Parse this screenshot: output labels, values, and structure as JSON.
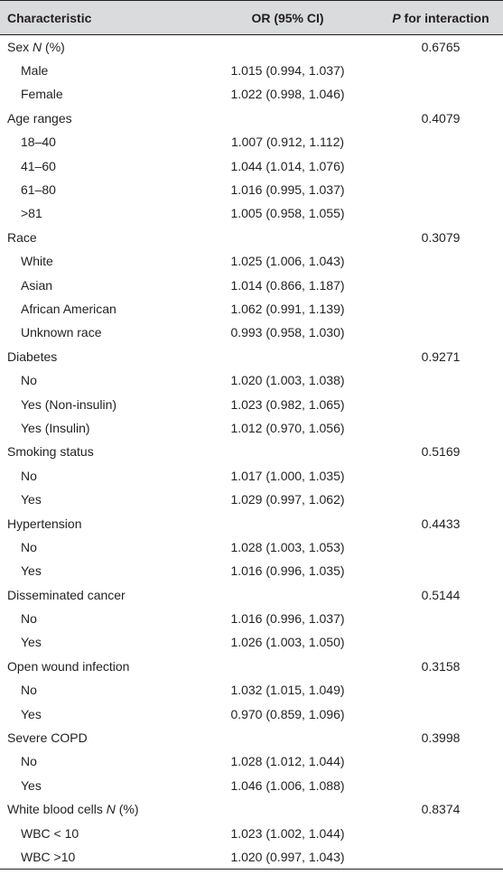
{
  "header": {
    "col1": "Characteristic",
    "col2": "OR (95% CI)",
    "col3_italic": "P",
    "col3_rest": " for interaction"
  },
  "rows": [
    {
      "label_pre": "Sex ",
      "label_italic": "N",
      "label_post": " (%)",
      "or": "",
      "p": "0.6765",
      "sub": false
    },
    {
      "label": "Male",
      "or": "1.015 (0.994, 1.037)",
      "p": "",
      "sub": true
    },
    {
      "label": "Female",
      "or": "1.022 (0.998, 1.046)",
      "p": "",
      "sub": true
    },
    {
      "label": "Age ranges",
      "or": "",
      "p": "0.4079",
      "sub": false
    },
    {
      "label": "18–40",
      "or": "1.007 (0.912, 1.112)",
      "p": "",
      "sub": true
    },
    {
      "label": "41–60",
      "or": "1.044 (1.014, 1.076)",
      "p": "",
      "sub": true
    },
    {
      "label": "61–80",
      "or": "1.016 (0.995, 1.037)",
      "p": "",
      "sub": true
    },
    {
      "label": ">81",
      "or": "1.005 (0.958, 1.055)",
      "p": "",
      "sub": true
    },
    {
      "label": "Race",
      "or": "",
      "p": "0.3079",
      "sub": false
    },
    {
      "label": "White",
      "or": "1.025 (1.006, 1.043)",
      "p": "",
      "sub": true
    },
    {
      "label": "Asian",
      "or": "1.014 (0.866, 1.187)",
      "p": "",
      "sub": true
    },
    {
      "label": "African American",
      "or": "1.062 (0.991, 1.139)",
      "p": "",
      "sub": true
    },
    {
      "label": "Unknown race",
      "or": "0.993 (0.958, 1.030)",
      "p": "",
      "sub": true
    },
    {
      "label": "Diabetes",
      "or": "",
      "p": "0.9271",
      "sub": false
    },
    {
      "label": "No",
      "or": "1.020 (1.003, 1.038)",
      "p": "",
      "sub": true
    },
    {
      "label": "Yes (Non-insulin)",
      "or": "1.023 (0.982, 1.065)",
      "p": "",
      "sub": true
    },
    {
      "label": "Yes (Insulin)",
      "or": "1.012 (0.970, 1.056)",
      "p": "",
      "sub": true
    },
    {
      "label": "Smoking status",
      "or": "",
      "p": "0.5169",
      "sub": false
    },
    {
      "label": "No",
      "or": "1.017 (1.000, 1.035)",
      "p": "",
      "sub": true
    },
    {
      "label": "Yes",
      "or": "1.029 (0.997, 1.062)",
      "p": "",
      "sub": true
    },
    {
      "label": "Hypertension",
      "or": "",
      "p": "0.4433",
      "sub": false
    },
    {
      "label": "No",
      "or": "1.028 (1.003, 1.053)",
      "p": "",
      "sub": true
    },
    {
      "label": "Yes",
      "or": "1.016 (0.996, 1.035)",
      "p": "",
      "sub": true
    },
    {
      "label": "Disseminated cancer",
      "or": "",
      "p": "0.5144",
      "sub": false
    },
    {
      "label": "No",
      "or": "1.016 (0.996, 1.037)",
      "p": "",
      "sub": true
    },
    {
      "label": "Yes",
      "or": "1.026 (1.003, 1.050)",
      "p": "",
      "sub": true
    },
    {
      "label": "Open wound infection",
      "or": "",
      "p": "0.3158",
      "sub": false
    },
    {
      "label": "No",
      "or": "1.032 (1.015, 1.049)",
      "p": "",
      "sub": true
    },
    {
      "label": "Yes",
      "or": "0.970 (0.859, 1.096)",
      "p": "",
      "sub": true
    },
    {
      "label": "Severe COPD",
      "or": "",
      "p": "0.3998",
      "sub": false
    },
    {
      "label": "No",
      "or": "1.028 (1.012, 1.044)",
      "p": "",
      "sub": true
    },
    {
      "label": "Yes",
      "or": "1.046 (1.006, 1.088)",
      "p": "",
      "sub": true
    },
    {
      "label_pre": "White blood cells ",
      "label_italic": "N",
      "label_post": " (%)",
      "or": "",
      "p": "0.8374",
      "sub": false
    },
    {
      "label": "WBC < 10",
      "or": "1.023 (1.002, 1.044)",
      "p": "",
      "sub": true
    },
    {
      "label": "WBC >10",
      "or": "1.020 (0.997, 1.043)",
      "p": "",
      "sub": true
    }
  ]
}
